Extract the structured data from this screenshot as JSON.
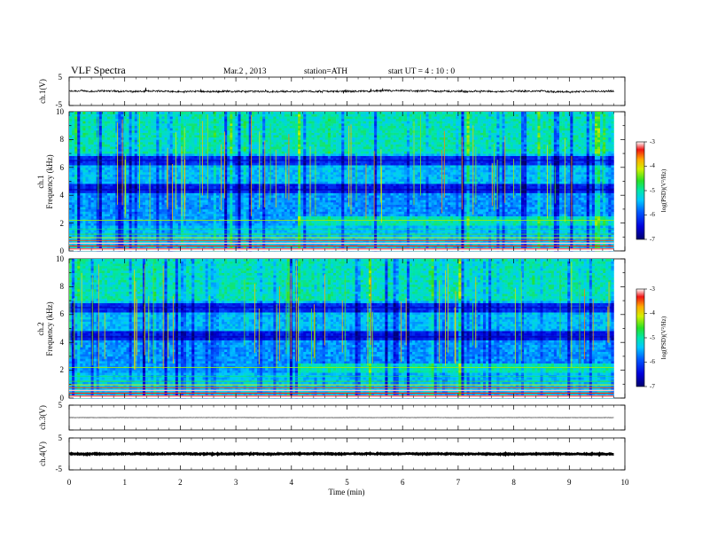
{
  "header": {
    "title": "VLF Spectra",
    "date": "Mar.2 , 2013",
    "station": "station=ATH",
    "start": "start UT =  4 : 10 : 0"
  },
  "chart_data": {
    "type": "heatmap",
    "xlabel": "Time (min)",
    "x_ticks": [
      "0",
      "1",
      "2",
      "3",
      "4",
      "5",
      "6",
      "7",
      "8",
      "9",
      "10"
    ],
    "xlim": [
      0,
      10
    ],
    "data_end_min": 9.8,
    "panels": [
      {
        "name": "ch1-waveform",
        "type": "line",
        "ylabel": "ch.1(V)",
        "y_ticks": [
          "5",
          "-5"
        ],
        "ylim": [
          -5,
          5
        ],
        "baseline": 0,
        "amplitude": 0.6
      },
      {
        "name": "ch1-spectrogram",
        "type": "heatmap",
        "ylabel_channel": "ch.1",
        "ylabel": "Frequency (kHz)",
        "y_ticks": [
          "0",
          "2",
          "4",
          "6",
          "8",
          "10"
        ],
        "ylim": [
          0,
          10
        ],
        "colorbar": {
          "label": "log(PSD)(V²/Hz)",
          "ticks": [
            "-3",
            "-4",
            "-5",
            "-6",
            "-7"
          ],
          "range": [
            -7,
            -3
          ]
        }
      },
      {
        "name": "ch2-spectrogram",
        "type": "heatmap",
        "ylabel_channel": "ch.2",
        "ylabel": "Frequency (kHz)",
        "y_ticks": [
          "0",
          "2",
          "4",
          "6",
          "8",
          "10"
        ],
        "ylim": [
          0,
          10
        ],
        "colorbar": {
          "label": "log(PSD)(V²/Hz)",
          "ticks": [
            "-3",
            "-4",
            "-5",
            "-6",
            "-7"
          ],
          "range": [
            -7,
            -3
          ]
        }
      },
      {
        "name": "ch3-waveform",
        "type": "line",
        "ylabel": "ch.3(V)",
        "y_ticks": [
          "5"
        ],
        "ylim": [
          -5,
          5
        ],
        "baseline": 0,
        "amplitude": 0.05
      },
      {
        "name": "ch4-waveform",
        "type": "line",
        "ylabel": "ch.4(V)",
        "y_ticks": [
          "5",
          "-5"
        ],
        "ylim": [
          -5,
          5
        ],
        "baseline": 0,
        "amplitude": 0.25
      }
    ]
  }
}
